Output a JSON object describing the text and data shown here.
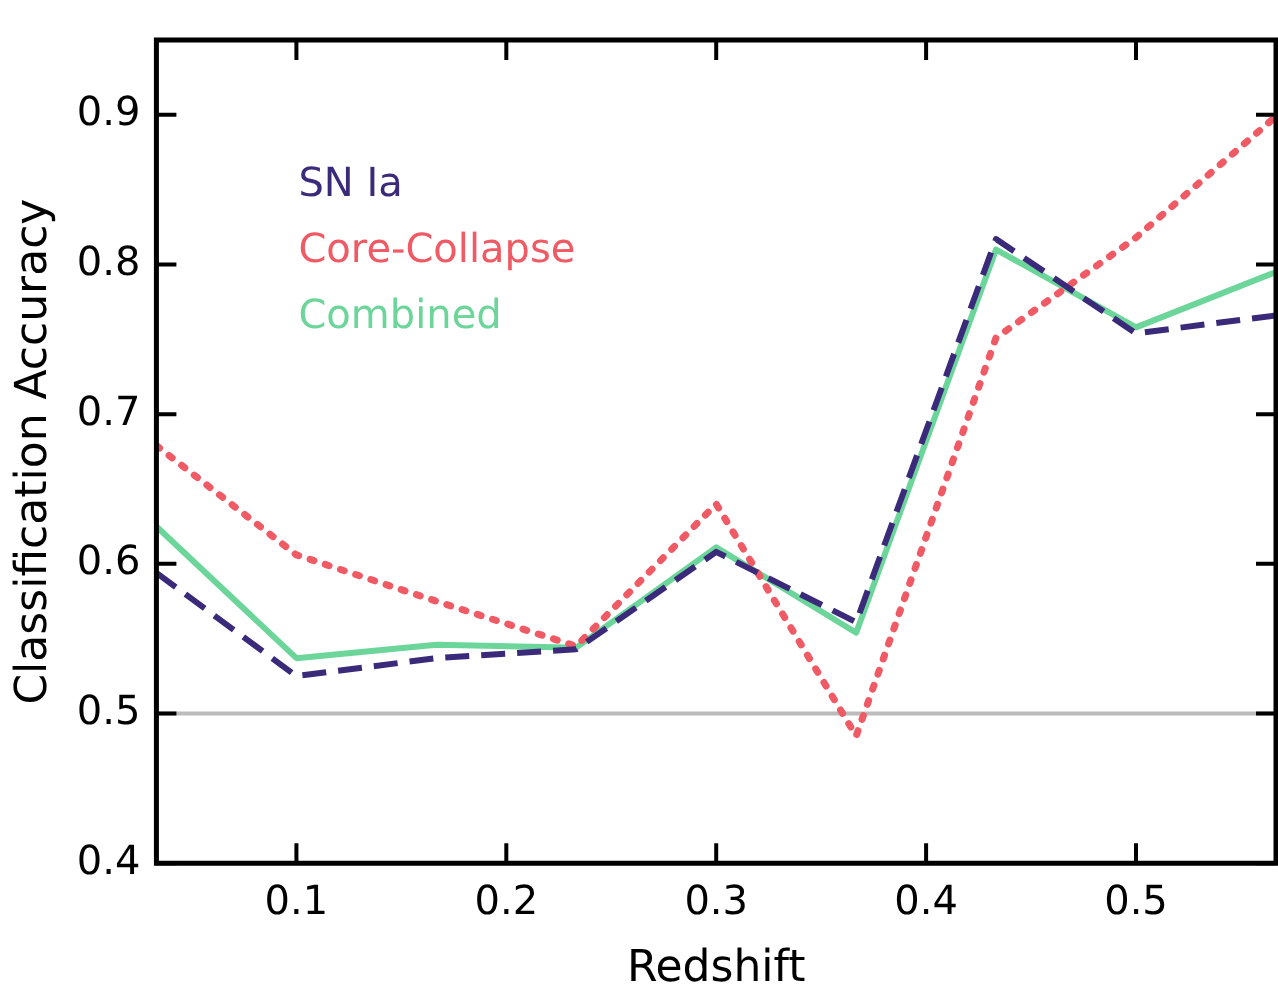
{
  "chart_data": {
    "type": "line",
    "xlabel": "Redshift",
    "ylabel": "Classification Accuracy",
    "x": [
      0.0333,
      0.1,
      0.1667,
      0.2333,
      0.3,
      0.3667,
      0.4333,
      0.5,
      0.5667
    ],
    "series": [
      {
        "name": "SN Ia",
        "color": "#3b2a7a",
        "line_style": "dashed",
        "values": [
          0.594,
          0.525,
          0.537,
          0.543,
          0.608,
          0.561,
          0.817,
          0.754,
          0.766
        ]
      },
      {
        "name": "Core-Collapse",
        "color": "#ef5a64",
        "line_style": "dotted",
        "values": [
          0.679,
          0.606,
          0.575,
          0.545,
          0.64,
          0.485,
          0.751,
          0.818,
          0.899
        ]
      },
      {
        "name": "Combined",
        "color": "#6cd69a",
        "line_style": "solid",
        "values": [
          0.625,
          0.537,
          0.546,
          0.544,
          0.611,
          0.554,
          0.81,
          0.758,
          0.795
        ]
      }
    ],
    "xlim": [
      0.0333,
      0.5667
    ],
    "xticks": [
      0.1,
      0.2,
      0.3,
      0.4,
      0.5
    ],
    "ylim": [
      0.4,
      0.95
    ],
    "yticks": [
      0.4,
      0.5,
      0.6,
      0.7,
      0.8,
      0.9
    ],
    "ref_lines": [
      {
        "axis": "y",
        "value": 0.5,
        "color": "#bbbbbb"
      }
    ],
    "legend": "top left",
    "grid": false,
    "marker": "none"
  }
}
